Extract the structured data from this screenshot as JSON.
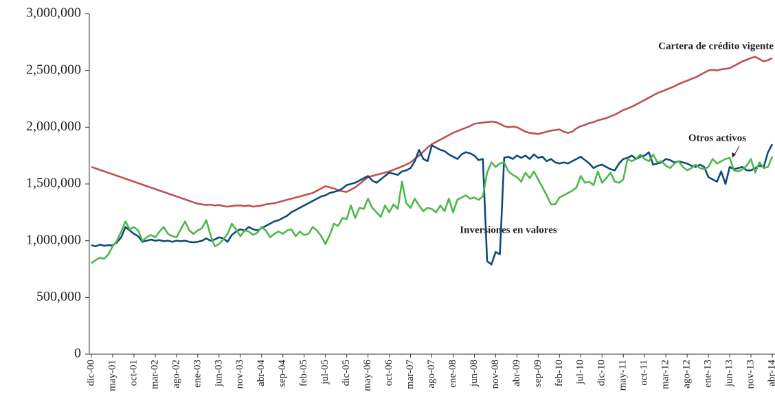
{
  "chart_data": {
    "type": "line",
    "categories": [
      "dic-00",
      null,
      null,
      null,
      null,
      "may-01",
      null,
      null,
      null,
      null,
      "oct-01",
      null,
      null,
      null,
      null,
      "mar-02",
      null,
      null,
      null,
      null,
      "ago-02",
      null,
      null,
      null,
      null,
      "ene-03",
      null,
      null,
      null,
      null,
      "jun-03",
      null,
      null,
      null,
      null,
      "nov-03",
      null,
      null,
      null,
      null,
      "abr-04",
      null,
      null,
      null,
      null,
      "sep-04",
      null,
      null,
      null,
      null,
      "feb-05",
      null,
      null,
      null,
      null,
      "jul-05",
      null,
      null,
      null,
      null,
      "dic-05",
      null,
      null,
      null,
      null,
      "may-06",
      null,
      null,
      null,
      null,
      "oct-06",
      null,
      null,
      null,
      null,
      "mar-07",
      null,
      null,
      null,
      null,
      "ago-07",
      null,
      null,
      null,
      null,
      "ene-08",
      null,
      null,
      null,
      null,
      "jun-08",
      null,
      null,
      null,
      null,
      "nov-08",
      null,
      null,
      null,
      null,
      "abr-09",
      null,
      null,
      null,
      null,
      "sep-09",
      null,
      null,
      null,
      null,
      "feb-10",
      null,
      null,
      null,
      null,
      "jul-10",
      null,
      null,
      null,
      null,
      "dic-10",
      null,
      null,
      null,
      null,
      "may-11",
      null,
      null,
      null,
      null,
      "oct-11",
      null,
      null,
      null,
      null,
      "mar-12",
      null,
      null,
      null,
      null,
      "ago-12",
      null,
      null,
      null,
      null,
      "ene-13",
      null,
      null,
      null,
      null,
      "jun-13",
      null,
      null,
      null,
      null,
      "nov-13",
      null,
      null,
      null,
      null,
      "abr-14"
    ],
    "series": [
      {
        "name": "Cartera de crédito vigente",
        "color": "#c0504d",
        "values": [
          1650000,
          1637000,
          1624000,
          1611000,
          1598000,
          1585000,
          1572000,
          1559000,
          1546000,
          1533000,
          1520000,
          1507000,
          1494000,
          1481000,
          1468000,
          1455000,
          1442000,
          1429000,
          1416000,
          1403000,
          1390000,
          1377000,
          1364000,
          1351000,
          1338000,
          1325000,
          1320000,
          1315000,
          1318000,
          1310000,
          1315000,
          1305000,
          1300000,
          1305000,
          1310000,
          1310000,
          1305000,
          1310000,
          1300000,
          1305000,
          1310000,
          1320000,
          1325000,
          1330000,
          1340000,
          1350000,
          1360000,
          1370000,
          1380000,
          1390000,
          1400000,
          1410000,
          1420000,
          1440000,
          1460000,
          1480000,
          1470000,
          1460000,
          1445000,
          1435000,
          1430000,
          1450000,
          1470000,
          1500000,
          1530000,
          1560000,
          1570000,
          1580000,
          1590000,
          1600000,
          1610000,
          1625000,
          1640000,
          1655000,
          1670000,
          1690000,
          1720000,
          1750000,
          1785000,
          1820000,
          1850000,
          1870000,
          1890000,
          1910000,
          1930000,
          1950000,
          1965000,
          1980000,
          1995000,
          2010000,
          2030000,
          2035000,
          2040000,
          2045000,
          2050000,
          2045000,
          2030000,
          2010000,
          2000000,
          2005000,
          2000000,
          1980000,
          1960000,
          1950000,
          1945000,
          1940000,
          1950000,
          1960000,
          1970000,
          1975000,
          1980000,
          1960000,
          1950000,
          1960000,
          1990000,
          2010000,
          2020000,
          2035000,
          2045000,
          2060000,
          2070000,
          2080000,
          2095000,
          2110000,
          2130000,
          2150000,
          2165000,
          2180000,
          2200000,
          2220000,
          2240000,
          2260000,
          2280000,
          2300000,
          2315000,
          2330000,
          2345000,
          2360000,
          2380000,
          2395000,
          2410000,
          2425000,
          2440000,
          2460000,
          2480000,
          2500000,
          2505000,
          2500000,
          2510000,
          2515000,
          2520000,
          2540000,
          2560000,
          2580000,
          2595000,
          2610000,
          2620000,
          2600000,
          2580000,
          2590000,
          2610000
        ]
      },
      {
        "name": "Inversiones en valores",
        "color": "#0d4a7c",
        "values": [
          960000,
          950000,
          965000,
          955000,
          960000,
          958000,
          985000,
          1030000,
          1120000,
          1090000,
          1060000,
          1040000,
          990000,
          1000000,
          1010000,
          1000000,
          1005000,
          995000,
          1000000,
          990000,
          1000000,
          995000,
          1000000,
          990000,
          985000,
          990000,
          1000000,
          1020000,
          1000000,
          1010000,
          1030000,
          1020000,
          990000,
          1050000,
          1080000,
          1100000,
          1090000,
          1120000,
          1100000,
          1090000,
          1110000,
          1130000,
          1150000,
          1170000,
          1180000,
          1200000,
          1220000,
          1250000,
          1270000,
          1290000,
          1310000,
          1330000,
          1350000,
          1370000,
          1390000,
          1400000,
          1420000,
          1430000,
          1440000,
          1460000,
          1490000,
          1500000,
          1510000,
          1530000,
          1550000,
          1570000,
          1530000,
          1510000,
          1540000,
          1570000,
          1600000,
          1590000,
          1580000,
          1610000,
          1620000,
          1640000,
          1700000,
          1800000,
          1720000,
          1700000,
          1840000,
          1820000,
          1800000,
          1790000,
          1760000,
          1740000,
          1720000,
          1760000,
          1780000,
          1770000,
          1750000,
          1710000,
          1720000,
          820000,
          790000,
          900000,
          880000,
          1730000,
          1740000,
          1720000,
          1750000,
          1730000,
          1750000,
          1720000,
          1760000,
          1730000,
          1740000,
          1700000,
          1720000,
          1690000,
          1680000,
          1690000,
          1680000,
          1700000,
          1720000,
          1740000,
          1710000,
          1680000,
          1640000,
          1660000,
          1670000,
          1650000,
          1630000,
          1620000,
          1680000,
          1720000,
          1730000,
          1750000,
          1720000,
          1740000,
          1750000,
          1780000,
          1670000,
          1680000,
          1690000,
          1720000,
          1710000,
          1690000,
          1700000,
          1690000,
          1680000,
          1660000,
          1650000,
          1670000,
          1650000,
          1560000,
          1540000,
          1520000,
          1610000,
          1500000,
          1650000,
          1630000,
          1640000,
          1650000,
          1620000,
          1620000,
          1640000,
          1660000,
          1650000,
          1780000,
          1850000
        ]
      },
      {
        "name": "Otros activos",
        "color": "#4db848",
        "values": [
          800000,
          830000,
          850000,
          840000,
          880000,
          950000,
          1000000,
          1080000,
          1170000,
          1100000,
          1120000,
          1090000,
          1000000,
          1030000,
          1050000,
          1030000,
          1080000,
          1120000,
          1060000,
          1040000,
          1030000,
          1100000,
          1170000,
          1090000,
          1060000,
          1090000,
          1110000,
          1180000,
          1050000,
          950000,
          970000,
          1010000,
          1060000,
          1150000,
          1100000,
          1040000,
          1090000,
          1080000,
          1050000,
          1070000,
          1120000,
          1090000,
          1030000,
          1060000,
          1080000,
          1060000,
          1090000,
          1100000,
          1040000,
          1080000,
          1050000,
          1060000,
          1120000,
          1090000,
          1040000,
          970000,
          1050000,
          1150000,
          1130000,
          1200000,
          1190000,
          1310000,
          1200000,
          1290000,
          1280000,
          1370000,
          1290000,
          1250000,
          1210000,
          1310000,
          1250000,
          1320000,
          1280000,
          1520000,
          1330000,
          1290000,
          1370000,
          1310000,
          1260000,
          1290000,
          1280000,
          1250000,
          1310000,
          1260000,
          1370000,
          1250000,
          1360000,
          1380000,
          1400000,
          1370000,
          1380000,
          1360000,
          1390000,
          1600000,
          1690000,
          1650000,
          1680000,
          1690000,
          1610000,
          1580000,
          1560000,
          1520000,
          1600000,
          1550000,
          1610000,
          1540000,
          1470000,
          1400000,
          1320000,
          1320000,
          1380000,
          1400000,
          1420000,
          1440000,
          1470000,
          1570000,
          1510000,
          1520000,
          1490000,
          1610000,
          1510000,
          1550000,
          1600000,
          1520000,
          1510000,
          1540000,
          1720000,
          1700000,
          1720000,
          1760000,
          1720000,
          1700000,
          1760000,
          1690000,
          1700000,
          1660000,
          1640000,
          1680000,
          1700000,
          1650000,
          1620000,
          1640000,
          1670000,
          1640000,
          1630000,
          1650000,
          1720000,
          1680000,
          1700000,
          1720000,
          1730000,
          1620000,
          1610000,
          1630000,
          1660000,
          1720000,
          1600000,
          1690000,
          1640000,
          1650000,
          1740000
        ]
      }
    ],
    "ylim": [
      0,
      3000000
    ],
    "yticks": [
      0,
      {
        "value": 500000,
        "label": "500,000"
      },
      {
        "value": 1000000,
        "label": "1,000,000"
      },
      {
        "value": 1500000,
        "label": "1,500,000"
      },
      {
        "value": 2000000,
        "label": "2,000,000"
      },
      {
        "value": 2500000,
        "label": "2,500,000"
      },
      {
        "value": 3000000,
        "label": "3,000,000"
      }
    ],
    "grid": false
  }
}
